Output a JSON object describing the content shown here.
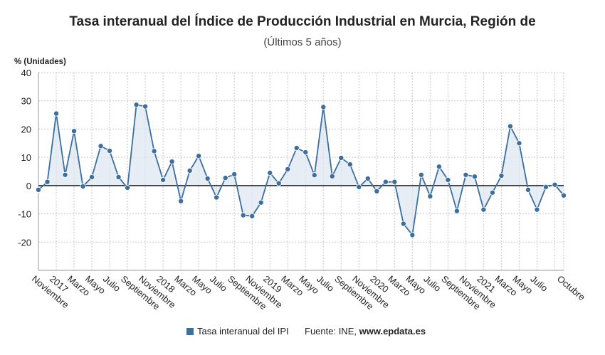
{
  "title": "Tasa interanual del Índice de Producción Industrial en Murcia, Región de",
  "subtitle": "(Últimos 5 años)",
  "legend_label": "Tasa interanual del IPI",
  "source_prefix": "Fuente: INE,",
  "source_site": "www.epdata.es",
  "colors": {
    "line": "#3c6e9e",
    "fill": "#dce6f1",
    "grid": "#c8c8d0",
    "zero": "#222222"
  },
  "chart_data": {
    "type": "line",
    "title": "Tasa interanual del Índice de Producción Industrial en Murcia, Región de",
    "subtitle": "(Últimos 5 años)",
    "ylabel": "% (Unidades)",
    "ylim": [
      -30,
      40
    ],
    "yticks": [
      -20,
      -10,
      0,
      10,
      20,
      30,
      40
    ],
    "grid": true,
    "xtick_labels": [
      {
        "i": 0,
        "label": "Noviembre"
      },
      {
        "i": 2,
        "label": "2017"
      },
      {
        "i": 4,
        "label": "Marzo"
      },
      {
        "i": 6,
        "label": "Mayo"
      },
      {
        "i": 8,
        "label": "Julio"
      },
      {
        "i": 10,
        "label": "Septiembre"
      },
      {
        "i": 12,
        "label": "Noviembre"
      },
      {
        "i": 14,
        "label": "2018"
      },
      {
        "i": 16,
        "label": "Marzo"
      },
      {
        "i": 18,
        "label": "Mayo"
      },
      {
        "i": 20,
        "label": "Julio"
      },
      {
        "i": 22,
        "label": "Septiembre"
      },
      {
        "i": 24,
        "label": "Noviembre"
      },
      {
        "i": 26,
        "label": "2019"
      },
      {
        "i": 28,
        "label": "Marzo"
      },
      {
        "i": 30,
        "label": "Mayo"
      },
      {
        "i": 32,
        "label": "Julio"
      },
      {
        "i": 34,
        "label": "Septiembre"
      },
      {
        "i": 36,
        "label": "Noviembre"
      },
      {
        "i": 38,
        "label": "2020"
      },
      {
        "i": 40,
        "label": "Marzo"
      },
      {
        "i": 42,
        "label": "Mayo"
      },
      {
        "i": 44,
        "label": "Julio"
      },
      {
        "i": 46,
        "label": "Septiembre"
      },
      {
        "i": 48,
        "label": "Noviembre"
      },
      {
        "i": 50,
        "label": "2021"
      },
      {
        "i": 52,
        "label": "Marzo"
      },
      {
        "i": 54,
        "label": "Mayo"
      },
      {
        "i": 56,
        "label": "Julio"
      },
      {
        "i": 59,
        "label": "Octubre"
      }
    ],
    "series": [
      {
        "name": "Tasa interanual del IPI",
        "values": [
          -1.5,
          1.3,
          25.5,
          3.8,
          19.3,
          -0.3,
          3.0,
          14.0,
          12.3,
          3.0,
          -0.8,
          28.6,
          28.0,
          12.2,
          2.0,
          8.5,
          -5.5,
          5.3,
          10.5,
          2.5,
          -4.2,
          2.7,
          4.0,
          -10.5,
          -10.8,
          -6.0,
          4.5,
          0.8,
          5.8,
          13.3,
          11.8,
          3.7,
          27.8,
          3.3,
          9.8,
          7.5,
          -0.5,
          2.5,
          -2.0,
          1.3,
          1.3,
          -13.5,
          -17.5,
          3.8,
          -3.8,
          6.7,
          2.0,
          -9.0,
          3.8,
          3.2,
          -8.5,
          -2.5,
          3.5,
          21.0,
          15.0,
          -1.5,
          -8.5,
          -0.5,
          0.3,
          -3.5
        ]
      }
    ]
  }
}
